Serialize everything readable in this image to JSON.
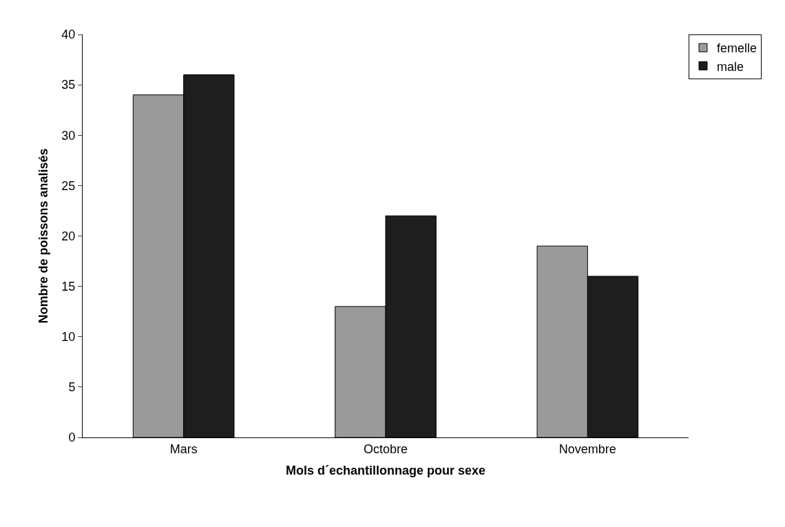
{
  "chart_data": {
    "type": "bar",
    "xlabel": "Mols d´echantillonnage pour sexe",
    "ylabel": "Nombre de poissons analisés",
    "categories": [
      "Mars",
      "Octobre",
      "Novembre"
    ],
    "series": [
      {
        "name": "femelle",
        "color": "#9a9a9a",
        "values": [
          34,
          13,
          19
        ]
      },
      {
        "name": "male",
        "color": "#1e1e1e",
        "values": [
          36,
          22,
          16
        ]
      }
    ],
    "ylim": [
      0,
      40
    ],
    "yticks": [
      0,
      5,
      10,
      15,
      20,
      25,
      30,
      35,
      40
    ],
    "legend": "top right"
  }
}
